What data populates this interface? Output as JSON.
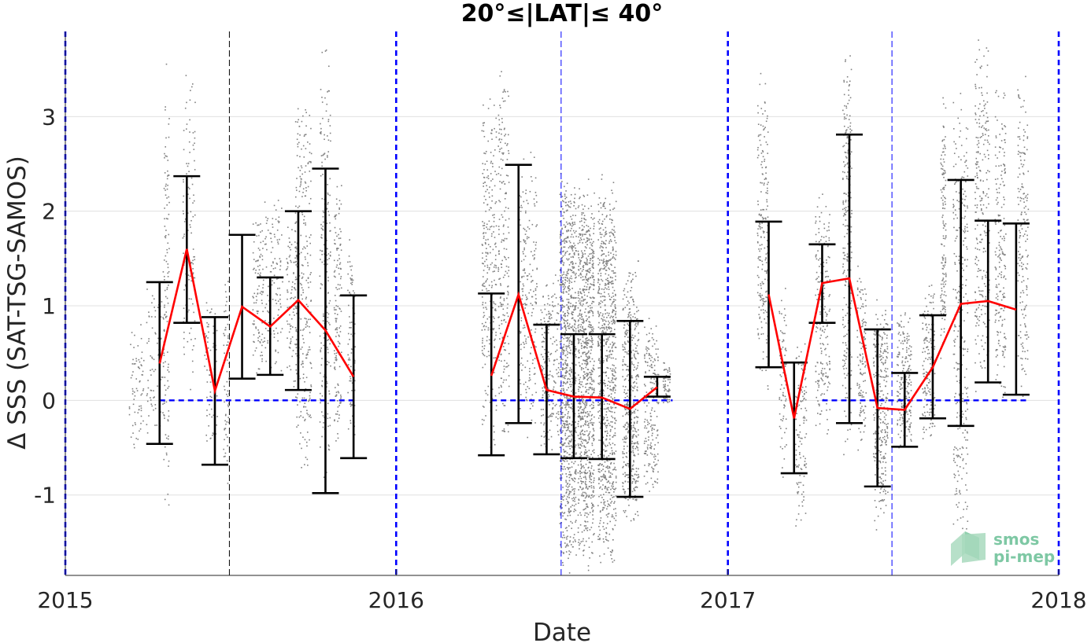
{
  "chart_data": {
    "type": "scatter",
    "title": "20°≤|LAT|≤ 40°",
    "xlabel": "Date",
    "ylabel": "Δ SSS (SAT-TSG-SAMOS)",
    "xlim": [
      "2015-01-01",
      "2018-01-01"
    ],
    "ylim": [
      -1.85,
      3.9
    ],
    "xticks": [
      "2015",
      "2016",
      "2017",
      "2018"
    ],
    "yticks": [
      -1,
      0,
      1,
      2,
      3
    ],
    "grid": "horizontal",
    "year_lines": [
      "2015-01-01",
      "2016-01-01",
      "2017-01-01",
      "2018-01-01"
    ],
    "midyear_lines": [
      "2015-07-01",
      "2016-07-01",
      "2017-07-01"
    ],
    "zero_line_segments": [
      [
        "2015-04-15",
        "2015-11-15"
      ],
      [
        "2016-04-15",
        "2016-11-01"
      ],
      [
        "2017-04-15",
        "2017-11-30"
      ]
    ],
    "series": [
      {
        "kind": "monthly_mean",
        "color": "#ff0000",
        "x": [
          "2015-04-15",
          "2015-05-15",
          "2015-06-15",
          "2015-07-15",
          "2015-08-15",
          "2015-09-15",
          "2015-10-15",
          "2015-11-15",
          "2016-04-15",
          "2016-05-15",
          "2016-06-15",
          "2016-07-15",
          "2016-08-15",
          "2016-09-15",
          "2016-10-15",
          "2017-02-15",
          "2017-03-15",
          "2017-04-15",
          "2017-05-15",
          "2017-06-15",
          "2017-07-15",
          "2017-08-15",
          "2017-09-15",
          "2017-10-15",
          "2017-11-15"
        ],
        "mean": [
          0.39,
          1.6,
          0.1,
          0.99,
          0.78,
          1.06,
          0.74,
          0.25,
          0.26,
          1.12,
          0.11,
          0.04,
          0.03,
          -0.09,
          0.14,
          1.12,
          -0.19,
          1.24,
          1.29,
          -0.08,
          -0.1,
          0.35,
          1.02,
          1.05,
          0.96
        ],
        "upper": [
          1.25,
          2.37,
          0.88,
          1.75,
          1.3,
          2.0,
          2.45,
          1.11,
          1.13,
          2.49,
          0.8,
          0.7,
          0.7,
          0.84,
          0.25,
          1.89,
          0.4,
          1.65,
          2.81,
          0.75,
          0.29,
          0.9,
          2.33,
          1.9,
          1.87
        ],
        "lower": [
          -0.46,
          0.82,
          -0.68,
          0.23,
          0.27,
          0.11,
          -0.98,
          -0.61,
          -0.58,
          -0.24,
          -0.57,
          -0.61,
          -0.62,
          -1.02,
          0.04,
          0.35,
          -0.77,
          0.82,
          -0.24,
          -0.91,
          -0.49,
          -0.19,
          -0.27,
          0.19,
          0.06
        ]
      }
    ],
    "scatter": {
      "color": "#808080",
      "clusters": [
        {
          "x": "2015-03-20",
          "spread_days": 8,
          "lo": -0.65,
          "hi": 1.0,
          "n": 70
        },
        {
          "x": "2015-04-10",
          "spread_days": 10,
          "lo": -0.45,
          "hi": 1.45,
          "n": 90
        },
        {
          "x": "2015-04-22",
          "spread_days": 3,
          "lo": -1.2,
          "hi": 3.65,
          "n": 110
        },
        {
          "x": "2015-05-17",
          "spread_days": 7,
          "lo": -0.3,
          "hi": 3.65,
          "n": 120
        },
        {
          "x": "2015-06-10",
          "spread_days": 7,
          "lo": -0.5,
          "hi": 1.2,
          "n": 80
        },
        {
          "x": "2015-06-27",
          "spread_days": 3,
          "lo": -1.0,
          "hi": 1.5,
          "n": 60
        },
        {
          "x": "2015-08-01",
          "spread_days": 6,
          "lo": 0.2,
          "hi": 2.0,
          "n": 100
        },
        {
          "x": "2015-08-18",
          "spread_days": 10,
          "lo": 0.2,
          "hi": 2.25,
          "n": 120
        },
        {
          "x": "2015-09-08",
          "spread_days": 7,
          "lo": 0.1,
          "hi": 1.9,
          "n": 120
        },
        {
          "x": "2015-09-20",
          "spread_days": 9,
          "lo": -1.0,
          "hi": 3.45,
          "n": 260
        },
        {
          "x": "2015-10-14",
          "spread_days": 6,
          "lo": -0.98,
          "hi": 3.85,
          "n": 200
        },
        {
          "x": "2015-10-28",
          "spread_days": 4,
          "lo": -0.6,
          "hi": 2.6,
          "n": 140
        },
        {
          "x": "2015-11-12",
          "spread_days": 4,
          "lo": -0.45,
          "hi": 1.8,
          "n": 90
        },
        {
          "x": "2016-04-12",
          "spread_days": 8,
          "lo": -0.6,
          "hi": 3.4,
          "n": 260
        },
        {
          "x": "2016-04-28",
          "spread_days": 6,
          "lo": -0.5,
          "hi": 3.6,
          "n": 200
        },
        {
          "x": "2016-05-25",
          "spread_days": 10,
          "lo": -0.5,
          "hi": 2.8,
          "n": 200
        },
        {
          "x": "2016-06-18",
          "spread_days": 10,
          "lo": -0.6,
          "hi": 1.4,
          "n": 200
        },
        {
          "x": "2016-07-08",
          "spread_days": 9,
          "lo": -1.85,
          "hi": 2.5,
          "n": 900
        },
        {
          "x": "2016-07-28",
          "spread_days": 9,
          "lo": -1.8,
          "hi": 2.4,
          "n": 900
        },
        {
          "x": "2016-08-20",
          "spread_days": 10,
          "lo": -1.8,
          "hi": 2.5,
          "n": 800
        },
        {
          "x": "2016-09-15",
          "spread_days": 9,
          "lo": -1.4,
          "hi": 1.5,
          "n": 450
        },
        {
          "x": "2016-10-08",
          "spread_days": 8,
          "lo": -1.0,
          "hi": 0.9,
          "n": 200
        },
        {
          "x": "2016-10-25",
          "spread_days": 4,
          "lo": -0.1,
          "hi": 0.45,
          "n": 60
        },
        {
          "x": "2017-02-08",
          "spread_days": 6,
          "lo": 0.0,
          "hi": 3.55,
          "n": 200
        },
        {
          "x": "2017-03-02",
          "spread_days": 4,
          "lo": -0.9,
          "hi": 1.2,
          "n": 80
        },
        {
          "x": "2017-03-22",
          "spread_days": 6,
          "lo": -1.35,
          "hi": 0.7,
          "n": 120
        },
        {
          "x": "2017-04-15",
          "spread_days": 8,
          "lo": -0.5,
          "hi": 2.3,
          "n": 200
        },
        {
          "x": "2017-05-12",
          "spread_days": 5,
          "lo": -0.6,
          "hi": 3.85,
          "n": 250
        },
        {
          "x": "2017-05-28",
          "spread_days": 5,
          "lo": -0.6,
          "hi": 1.5,
          "n": 120
        },
        {
          "x": "2017-06-18",
          "spread_days": 8,
          "lo": -1.45,
          "hi": 1.2,
          "n": 300
        },
        {
          "x": "2017-07-14",
          "spread_days": 8,
          "lo": -0.6,
          "hi": 1.0,
          "n": 200
        },
        {
          "x": "2017-08-10",
          "spread_days": 7,
          "lo": -0.45,
          "hi": 1.35,
          "n": 160
        },
        {
          "x": "2017-08-26",
          "spread_days": 3,
          "lo": 0.3,
          "hi": 3.4,
          "n": 140
        },
        {
          "x": "2017-09-14",
          "spread_days": 8,
          "lo": -1.8,
          "hi": 3.4,
          "n": 300
        },
        {
          "x": "2017-10-08",
          "spread_days": 8,
          "lo": -0.1,
          "hi": 3.9,
          "n": 260
        },
        {
          "x": "2017-10-28",
          "spread_days": 6,
          "lo": -0.1,
          "hi": 3.5,
          "n": 200
        },
        {
          "x": "2017-11-22",
          "spread_days": 6,
          "lo": -0.2,
          "hi": 3.5,
          "n": 180
        }
      ]
    },
    "colors": {
      "grid": "#e0e0e0",
      "scatter": "#808080",
      "mean_line": "#ff0000",
      "errorbar": "#000000",
      "reference": "#0000ff",
      "midyear": "#000000"
    }
  },
  "logo": {
    "line1": "smos",
    "line2": "pi-mep"
  }
}
